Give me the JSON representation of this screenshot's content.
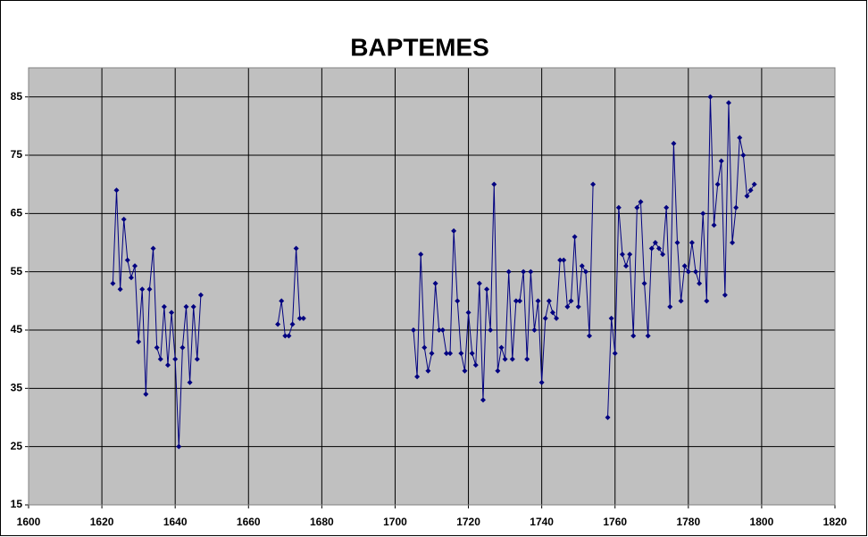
{
  "chart_data": {
    "type": "line",
    "title": "BAPTEMES",
    "x": [
      1623,
      1624,
      1625,
      1626,
      1627,
      1628,
      1629,
      1630,
      1631,
      1632,
      1633,
      1634,
      1635,
      1636,
      1637,
      1638,
      1639,
      1640,
      1641,
      1642,
      1643,
      1644,
      1645,
      1646,
      1647,
      1648,
      1668,
      1669,
      1670,
      1671,
      1672,
      1673,
      1674,
      1675,
      1676,
      1705,
      1706,
      1707,
      1708,
      1709,
      1710,
      1711,
      1712,
      1713,
      1714,
      1715,
      1716,
      1717,
      1718,
      1719,
      1720,
      1721,
      1722,
      1723,
      1724,
      1725,
      1726,
      1727,
      1728,
      1729,
      1730,
      1731,
      1732,
      1733,
      1734,
      1735,
      1736,
      1737,
      1738,
      1739,
      1740,
      1741,
      1742,
      1743,
      1744,
      1745,
      1746,
      1747,
      1748,
      1749,
      1750,
      1751,
      1752,
      1753,
      1754,
      1755,
      1758,
      1759,
      1760,
      1761,
      1762,
      1763,
      1764,
      1765,
      1766,
      1767,
      1768,
      1769,
      1770,
      1771,
      1772,
      1773,
      1774,
      1775,
      1776,
      1777,
      1778,
      1779,
      1780,
      1781,
      1782,
      1783,
      1784,
      1785,
      1786,
      1787,
      1788,
      1789,
      1790,
      1791,
      1792,
      1793,
      1794,
      1795,
      1796,
      1797,
      1798
    ],
    "values": [
      53,
      69,
      52,
      64,
      57,
      54,
      56,
      43,
      52,
      34,
      52,
      59,
      42,
      40,
      49,
      39,
      48,
      40,
      25,
      42,
      49,
      36,
      49,
      40,
      51,
      null,
      46,
      50,
      44,
      44,
      46,
      59,
      47,
      47,
      null,
      45,
      37,
      58,
      42,
      38,
      41,
      53,
      45,
      45,
      41,
      41,
      62,
      50,
      41,
      38,
      48,
      41,
      39,
      53,
      33,
      52,
      45,
      70,
      38,
      42,
      40,
      55,
      40,
      50,
      50,
      55,
      40,
      55,
      45,
      50,
      36,
      47,
      50,
      48,
      47,
      57,
      57,
      49,
      50,
      61,
      49,
      56,
      55,
      44,
      70,
      null,
      30,
      47,
      41,
      66,
      58,
      56,
      58,
      44,
      66,
      67,
      53,
      44,
      59,
      60,
      59,
      58,
      66,
      49,
      77,
      60,
      50,
      56,
      55,
      60,
      55,
      53,
      65,
      50,
      85,
      63,
      70,
      74,
      51,
      84,
      60,
      66,
      78,
      75,
      68,
      69,
      70
    ],
    "color": "#000080",
    "xlim": [
      1600,
      1820
    ],
    "xticks": [
      1600,
      1620,
      1640,
      1660,
      1680,
      1700,
      1720,
      1740,
      1760,
      1780,
      1800,
      1820
    ],
    "ylim": [
      15,
      90
    ],
    "yticks": [
      15,
      25,
      35,
      45,
      55,
      65,
      75,
      85
    ],
    "grid": true
  }
}
